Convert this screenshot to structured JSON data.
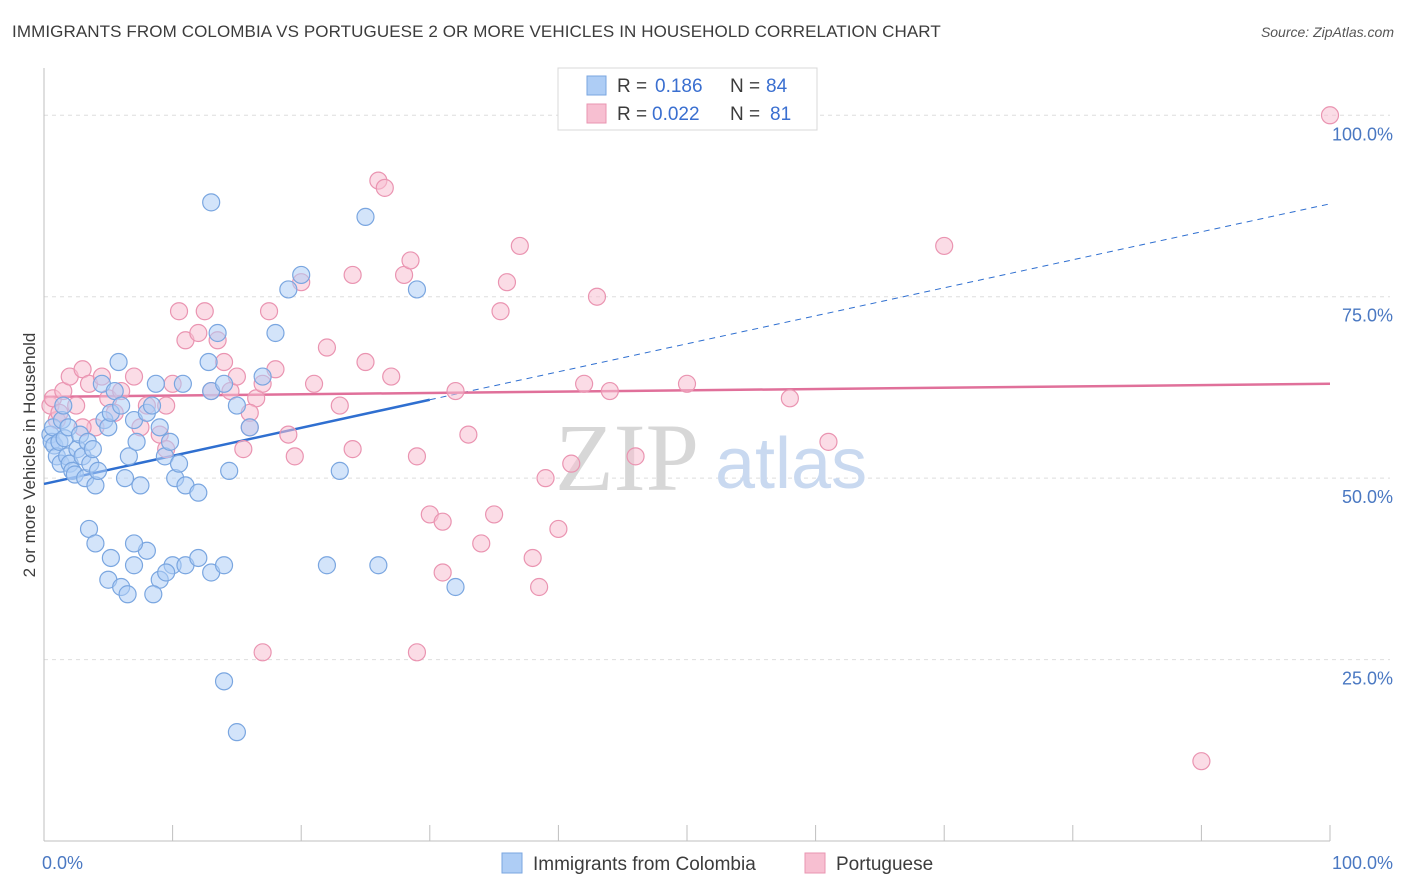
{
  "title": "IMMIGRANTS FROM COLOMBIA VS PORTUGUESE 2 OR MORE VEHICLES IN HOUSEHOLD CORRELATION CHART",
  "source": "Source: ZipAtlas.com",
  "watermark": {
    "zip": "ZIP",
    "atlas": "atlas"
  },
  "colors": {
    "blue_fill": "#aecdf5",
    "blue_stroke": "#7aa6e0",
    "blue_line": "#2f6fd0",
    "pink_fill": "#f7bfd1",
    "pink_stroke": "#ea94b1",
    "pink_line": "#e0709a",
    "tick_text": "#4a78c2",
    "grid": "#dedede"
  },
  "legend": {
    "rows": [
      {
        "r_label": "R = ",
        "r_value": "0.186",
        "n_label": "N = ",
        "n_value": "84"
      },
      {
        "r_label": "R = ",
        "r_value": "0.022",
        "n_label": "N = ",
        "n_value": "81"
      }
    ]
  },
  "chart_data": {
    "type": "scatter",
    "ylabel": "2 or more Vehicles in Household",
    "xlim": [
      0,
      100
    ],
    "ylim": [
      0,
      105
    ],
    "x_tick_labels": {
      "left": "0.0%",
      "right": "100.0%"
    },
    "y_ticks": [
      {
        "value": 25,
        "label": "25.0%"
      },
      {
        "value": 50,
        "label": "50.0%"
      },
      {
        "value": 75,
        "label": "75.0%"
      },
      {
        "value": 100,
        "label": "100.0%"
      }
    ],
    "grid": true,
    "legend_position": "top-center",
    "series": [
      {
        "name": "Immigrants from Colombia",
        "color": "blue",
        "trend": {
          "x0": 0,
          "y0": 49.2,
          "x1": 30,
          "y1": 60.8,
          "dashed_to_x": 100,
          "dashed_to_y": 87.8
        },
        "points": [
          [
            0.5,
            56
          ],
          [
            0.6,
            55
          ],
          [
            0.7,
            57
          ],
          [
            0.8,
            54.5
          ],
          [
            1,
            53
          ],
          [
            1.2,
            55
          ],
          [
            1.3,
            52
          ],
          [
            1.4,
            58
          ],
          [
            1.5,
            60
          ],
          [
            1.6,
            55.5
          ],
          [
            1.8,
            53
          ],
          [
            1.9,
            57
          ],
          [
            2,
            52
          ],
          [
            2.2,
            51
          ],
          [
            2.4,
            50.5
          ],
          [
            2.6,
            54
          ],
          [
            2.8,
            56
          ],
          [
            3,
            53
          ],
          [
            3.2,
            50
          ],
          [
            3.4,
            55
          ],
          [
            3.6,
            52
          ],
          [
            3.8,
            54
          ],
          [
            4,
            49
          ],
          [
            4.2,
            51
          ],
          [
            4.5,
            63
          ],
          [
            4.7,
            58
          ],
          [
            5,
            57
          ],
          [
            5.2,
            59
          ],
          [
            5.5,
            62
          ],
          [
            5.8,
            66
          ],
          [
            6,
            60
          ],
          [
            6.3,
            50
          ],
          [
            6.6,
            53
          ],
          [
            7,
            58
          ],
          [
            7.2,
            55
          ],
          [
            7.5,
            49
          ],
          [
            8,
            59
          ],
          [
            8.4,
            60
          ],
          [
            8.7,
            63
          ],
          [
            9,
            57
          ],
          [
            9.4,
            53
          ],
          [
            9.8,
            55
          ],
          [
            10.2,
            50
          ],
          [
            10.5,
            52
          ],
          [
            10.8,
            63
          ],
          [
            11,
            49
          ],
          [
            12,
            48
          ],
          [
            12.8,
            66
          ],
          [
            13,
            62
          ],
          [
            13.5,
            70
          ],
          [
            14,
            63
          ],
          [
            14.4,
            51
          ],
          [
            15,
            60
          ],
          [
            16,
            57
          ],
          [
            17,
            64
          ],
          [
            18,
            70
          ],
          [
            19,
            76
          ],
          [
            20,
            78
          ],
          [
            23,
            51
          ],
          [
            26,
            38
          ],
          [
            5,
            36
          ],
          [
            6,
            35
          ],
          [
            7,
            38
          ],
          [
            8,
            40
          ],
          [
            9,
            36
          ],
          [
            10,
            38
          ],
          [
            11,
            38
          ],
          [
            12,
            39
          ],
          [
            13,
            37
          ],
          [
            14,
            38
          ],
          [
            6.5,
            34
          ],
          [
            8.5,
            34
          ],
          [
            9.5,
            37
          ],
          [
            3.5,
            43
          ],
          [
            4,
            41
          ],
          [
            5.2,
            39
          ],
          [
            7,
            41
          ],
          [
            22,
            38
          ],
          [
            25,
            86
          ],
          [
            29,
            76
          ],
          [
            32,
            35
          ],
          [
            13,
            88
          ],
          [
            14,
            22
          ],
          [
            15,
            15
          ]
        ]
      },
      {
        "name": "Portuguese",
        "color": "pink",
        "trend": {
          "x0": 0,
          "y0": 61.2,
          "x1": 100,
          "y1": 63
        },
        "points": [
          [
            0.5,
            60
          ],
          [
            0.7,
            61
          ],
          [
            1,
            58
          ],
          [
            1.2,
            59
          ],
          [
            1.5,
            62
          ],
          [
            2,
            64
          ],
          [
            2.5,
            60
          ],
          [
            3,
            65
          ],
          [
            3.5,
            63
          ],
          [
            4,
            57
          ],
          [
            4.5,
            64
          ],
          [
            5,
            61
          ],
          [
            5.5,
            59
          ],
          [
            6,
            62
          ],
          [
            7,
            64
          ],
          [
            7.5,
            57
          ],
          [
            8,
            60
          ],
          [
            9,
            56
          ],
          [
            9.5,
            54
          ],
          [
            10,
            63
          ],
          [
            10.5,
            73
          ],
          [
            11,
            69
          ],
          [
            12,
            70
          ],
          [
            12.5,
            73
          ],
          [
            13,
            62
          ],
          [
            13.5,
            69
          ],
          [
            14,
            66
          ],
          [
            14.5,
            62
          ],
          [
            15,
            64
          ],
          [
            15.5,
            54
          ],
          [
            16,
            57
          ],
          [
            16.5,
            61
          ],
          [
            17,
            63
          ],
          [
            17.5,
            73
          ],
          [
            18,
            65
          ],
          [
            19,
            56
          ],
          [
            19.5,
            53
          ],
          [
            20,
            77
          ],
          [
            21,
            63
          ],
          [
            22,
            68
          ],
          [
            23,
            60
          ],
          [
            24,
            54
          ],
          [
            25,
            66
          ],
          [
            26,
            91
          ],
          [
            26.5,
            90
          ],
          [
            27,
            64
          ],
          [
            28,
            78
          ],
          [
            28.5,
            80
          ],
          [
            29,
            53
          ],
          [
            30,
            45
          ],
          [
            31,
            44
          ],
          [
            32,
            62
          ],
          [
            33,
            56
          ],
          [
            34,
            41
          ],
          [
            35,
            45
          ],
          [
            35.5,
            73
          ],
          [
            36,
            77
          ],
          [
            37,
            82
          ],
          [
            38,
            39
          ],
          [
            38.5,
            35
          ],
          [
            39,
            50
          ],
          [
            40,
            43
          ],
          [
            41,
            52
          ],
          [
            42,
            63
          ],
          [
            43,
            75
          ],
          [
            44,
            62
          ],
          [
            46,
            53
          ],
          [
            48,
            100
          ],
          [
            9.5,
            60
          ],
          [
            17,
            26
          ],
          [
            24,
            78
          ],
          [
            16,
            59
          ],
          [
            31,
            37
          ],
          [
            29,
            26
          ],
          [
            50,
            63
          ],
          [
            58,
            61
          ],
          [
            61,
            55
          ],
          [
            70,
            82
          ],
          [
            90,
            11
          ],
          [
            100,
            100
          ],
          [
            3,
            57
          ]
        ]
      }
    ]
  }
}
